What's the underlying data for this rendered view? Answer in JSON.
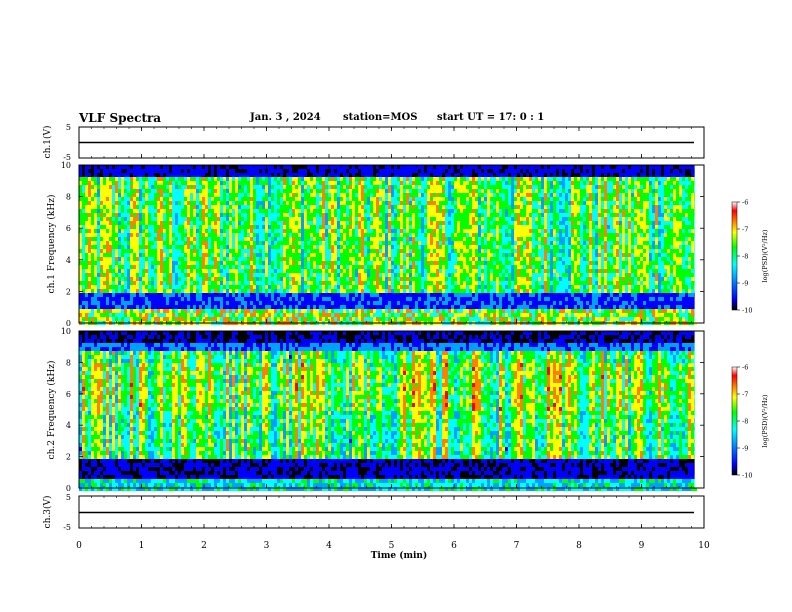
{
  "header": {
    "title": "VLF Spectra",
    "date": "Jan. 3 , 2024",
    "station": "station=MOS",
    "start": "start UT = 17: 0 : 1"
  },
  "chart_data": [
    {
      "type": "line",
      "panel": "ch1-waveform",
      "ylabel": "ch.1(V)",
      "ylim": [
        -5,
        5
      ],
      "yticks": [
        5,
        -5
      ],
      "x_range_min": [
        0,
        10
      ],
      "series": [
        {
          "values": [
            [
              0,
              -1.5
            ],
            [
              9.85,
              -1.5
            ]
          ]
        }
      ]
    },
    {
      "type": "heatmap",
      "panel": "ch1-spectrogram",
      "ylabel": "ch.1 Frequency (kHz)",
      "ylim": [
        0,
        10
      ],
      "yticks": [
        0,
        2,
        4,
        6,
        8,
        10
      ],
      "xlim": [
        0,
        10
      ],
      "data_end_min": 9.85,
      "colorbar": {
        "label": "log(PSD)(V²/Hz)",
        "range": [
          -10,
          -6
        ],
        "ticks": [
          -6,
          -7,
          -8,
          -9,
          -10
        ]
      }
    },
    {
      "type": "heatmap",
      "panel": "ch2-spectrogram",
      "ylabel": "ch.2 Frequency (kHz)",
      "ylim": [
        0,
        10
      ],
      "yticks": [
        0,
        2,
        4,
        6,
        8,
        10
      ],
      "xlim": [
        0,
        10
      ],
      "data_end_min": 9.85,
      "colorbar": {
        "label": "log(PSD)(V²/Hz)",
        "range": [
          -10,
          -6
        ],
        "ticks": [
          -6,
          -7,
          -8,
          -9,
          -10
        ]
      }
    },
    {
      "type": "line",
      "panel": "ch3-waveform",
      "ylabel": "ch.3(V)",
      "ylim": [
        -5,
        5
      ],
      "yticks": [
        5,
        -5
      ],
      "series": [
        {
          "values": [
            [
              0,
              -1.5
            ],
            [
              9.85,
              -1.5
            ]
          ]
        }
      ]
    }
  ],
  "xaxis": {
    "label": "Time (min)",
    "ticks": [
      0,
      1,
      2,
      3,
      4,
      5,
      6,
      7,
      8,
      9,
      10
    ],
    "range": [
      0,
      10
    ]
  },
  "colors": {
    "scale": [
      "#000000",
      "#0000ff",
      "#00a0ff",
      "#00ffff",
      "#00ff00",
      "#ffff00",
      "#ff8000",
      "#ff0000",
      "#ffffff"
    ]
  }
}
